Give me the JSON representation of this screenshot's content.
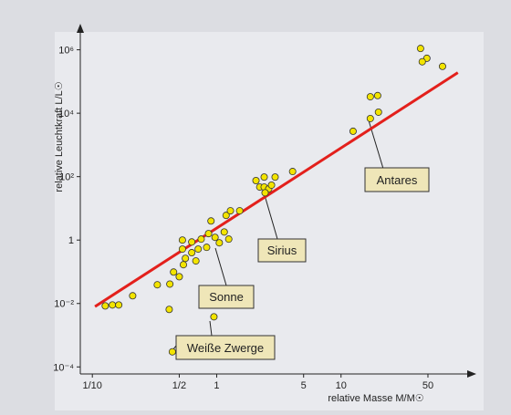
{
  "chart_data": {
    "type": "scatter",
    "xlabel": "relative Masse M/M☉",
    "ylabel": "relative Leuchtkraft L/L☉",
    "xscale": "log",
    "yscale": "log",
    "xlim": [
      0.08,
      100
    ],
    "ylim": [
      6e-05,
      3000000
    ],
    "xticks": [
      {
        "value": 0.1,
        "label": "1/10"
      },
      {
        "value": 0.5,
        "label": "1/2"
      },
      1,
      5,
      10,
      50
    ],
    "yticks": [
      {
        "value": 0.0001,
        "label": "10⁻⁴"
      },
      {
        "value": 0.01,
        "label": "10⁻²"
      },
      1,
      {
        "value": 100,
        "label": "10²"
      },
      {
        "value": 10000,
        "label": "10⁴"
      },
      {
        "value": 1000000,
        "label": "10⁶"
      }
    ],
    "points": {
      "color": "#f3e400",
      "x": [
        0.127,
        0.145,
        0.163,
        0.211,
        0.333,
        0.42,
        0.415,
        0.45,
        0.5,
        0.54,
        0.53,
        0.53,
        0.56,
        0.63,
        0.63,
        0.68,
        0.71,
        0.75,
        0.83,
        0.86,
        0.9,
        0.97,
        1.05,
        1.15,
        1.19,
        1.29,
        1.53,
        1.25,
        0.95,
        0.44,
        2.07,
        2.22,
        2.41,
        2.62,
        2.41,
        2.76,
        2.95,
        2.45,
        4.08,
        12.5,
        17.2,
        17.2,
        19.7,
        20,
        43.6,
        49,
        45,
        65.5
      ],
      "y": [
        0.0084,
        0.009,
        0.009,
        0.0175,
        0.039,
        0.041,
        0.0065,
        0.098,
        0.07,
        0.167,
        0.52,
        1.0,
        0.265,
        0.4,
        0.87,
        0.22,
        0.52,
        1.07,
        0.59,
        1.6,
        4.0,
        1.22,
        0.82,
        1.8,
        6.0,
        8.4,
        8.4,
        1.07,
        0.0038,
        0.0003,
        75,
        47,
        47,
        41,
        97,
        54,
        97,
        31,
        145,
        2700,
        6800,
        33000,
        36000,
        10800,
        1100000,
        540000,
        420000,
        300000
      ]
    },
    "fit_line": {
      "color": "#e3201c",
      "x": [
        0.105,
        87
      ],
      "y": [
        0.008,
        190000
      ]
    },
    "annotations": [
      "Antares",
      "Sirius",
      "Sonne",
      "Weiße Zwerge"
    ]
  }
}
